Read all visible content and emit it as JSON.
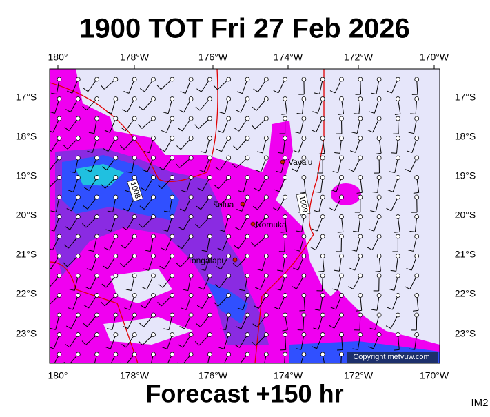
{
  "header": {
    "title": "1900 TOT Fri 27 Feb 2026"
  },
  "footer": {
    "forecast": "Forecast +150 hr",
    "corner": "IM2"
  },
  "map": {
    "lon_ticks": [
      "180°",
      "178°W",
      "176°W",
      "174°W",
      "172°W",
      "170°W"
    ],
    "lat_ticks": [
      "17°S",
      "18°S",
      "19°S",
      "20°S",
      "21°S",
      "22°S",
      "23°S"
    ],
    "places": [
      {
        "label": "Vava'u"
      },
      {
        "label": "Tofua"
      },
      {
        "label": "Nomuka"
      },
      {
        "label": "Tongatapu"
      }
    ],
    "isobars": [
      {
        "label": "1008"
      },
      {
        "label": "1009"
      }
    ],
    "copyright": "Copyright metvuw.com"
  }
}
